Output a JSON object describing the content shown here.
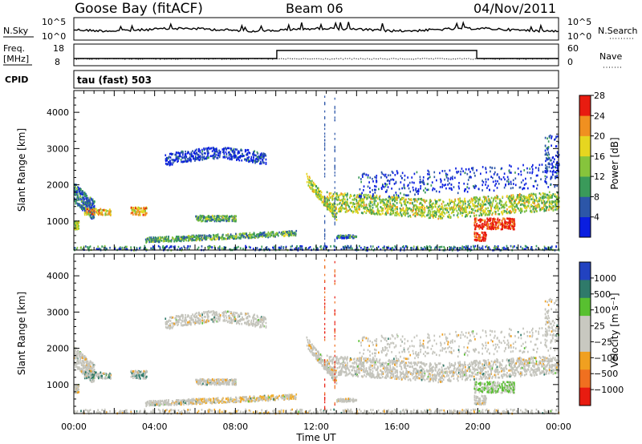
{
  "header": {
    "station": "Goose Bay (fitACF)",
    "beam": "Beam 06",
    "date": "04/Nov/2011"
  },
  "panels": {
    "nsky": {
      "label": "N.Sky",
      "tick_top": "10^5",
      "tick_bottom": "10^0",
      "right_label": "N.Search",
      "right_tick_top": "10^5",
      "right_tick_bottom": "10^0"
    },
    "freq": {
      "label": "Freq.",
      "unit": "[MHz]",
      "tick_top": "18",
      "tick_bottom": "8",
      "right_label": "Nave",
      "right_tick_top": "60",
      "right_tick_bottom": "0"
    },
    "cpid": {
      "label": "CPID",
      "text": "tau (fast) 503"
    }
  },
  "chart_data": [
    {
      "type": "heatmap",
      "quantity": "Power",
      "ylabel": "Slant Range [km]",
      "yticks": [
        1000,
        2000,
        3000,
        4000
      ],
      "ylim": [
        200,
        4600
      ],
      "xlim": [
        "00:00",
        "24:00"
      ],
      "colorbar": {
        "label": "Power [dB]",
        "ticks": [
          "4",
          "8",
          "12",
          "16",
          "20",
          "24",
          "28"
        ],
        "colors": [
          "#0a1ee0",
          "#2c56a8",
          "#3a9a5a",
          "#86c43c",
          "#e6d620",
          "#f09020",
          "#e81c10"
        ]
      }
    },
    {
      "type": "heatmap",
      "quantity": "Velocity",
      "ylabel": "Slant Range [km]",
      "yticks": [
        1000,
        2000,
        3000,
        4000
      ],
      "ylim": [
        200,
        4600
      ],
      "xlim": [
        "00:00",
        "24:00"
      ],
      "xlabel": "Time UT",
      "xticks": [
        "00:00",
        "04:00",
        "08:00",
        "12:00",
        "16:00",
        "20:00",
        "00:00"
      ],
      "colorbar": {
        "label": "Velocity [m s⁻¹]",
        "ticks": [
          "1000",
          "500",
          "100",
          "25",
          "−25",
          "−100",
          "−500",
          "−1000"
        ],
        "colors": [
          "#2242c0",
          "#2f7a6a",
          "#58c030",
          "#c8c8c0",
          "#c8c8c0",
          "#f0a020",
          "#f07020",
          "#e81c10"
        ]
      }
    }
  ]
}
